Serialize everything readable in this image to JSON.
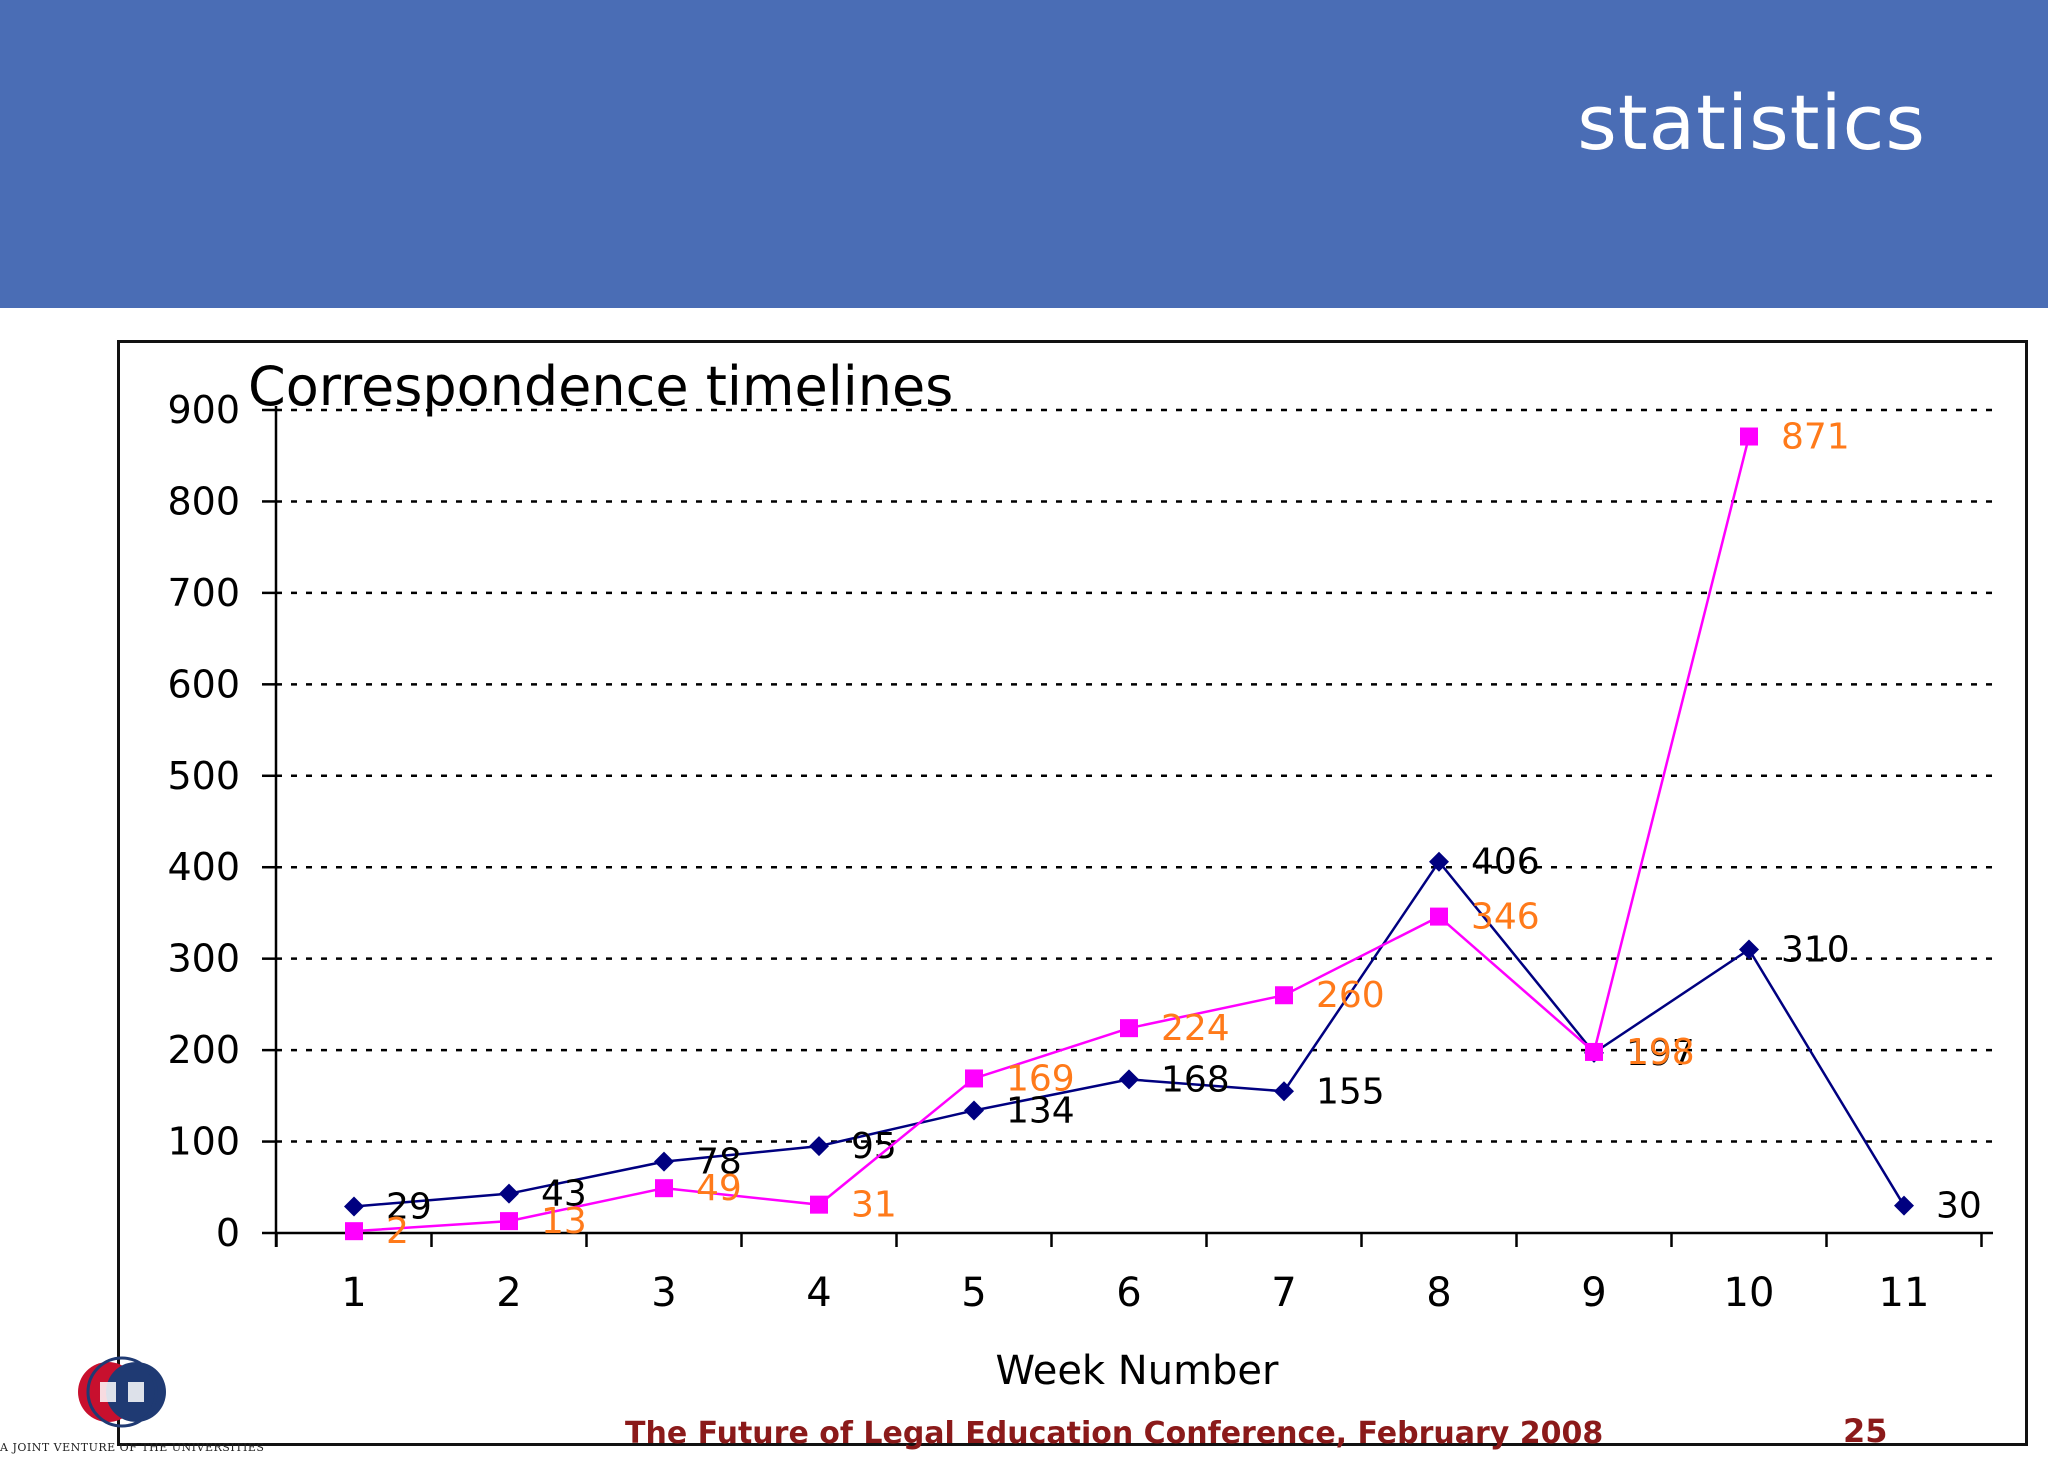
{
  "slide": {
    "title": "statistics",
    "footer": "The Future of Legal Education Conference, February 2008",
    "page_number": "25",
    "logo_caption": "A JOINT VENTURE OF THE UNIVERSITIES"
  },
  "colors": {
    "header": "#4a6db5",
    "series_navy": "#000080",
    "series_magenta": "#ff00ff",
    "label_orange": "#ff7a1a",
    "footer": "#8b1a1a"
  },
  "chart_data": {
    "type": "line",
    "title": "Correspondence timelines",
    "xlabel": "Week Number",
    "ylabel": "",
    "x": [
      1,
      2,
      3,
      4,
      5,
      6,
      7,
      8,
      9,
      10,
      11
    ],
    "ylim": [
      0,
      900
    ],
    "yticks": [
      0,
      100,
      200,
      300,
      400,
      500,
      600,
      700,
      800,
      900
    ],
    "grid": "horizontal dotted",
    "series": [
      {
        "color": "#000080",
        "marker": "diamond",
        "label_color": "#000000",
        "values": [
          29,
          43,
          78,
          95,
          134,
          168,
          155,
          406,
          197,
          310,
          30
        ]
      },
      {
        "color": "#ff00ff",
        "marker": "square",
        "label_color": "#ff7a1a",
        "values": [
          2,
          13,
          49,
          31,
          169,
          224,
          260,
          346,
          198,
          871,
          null
        ]
      }
    ]
  }
}
